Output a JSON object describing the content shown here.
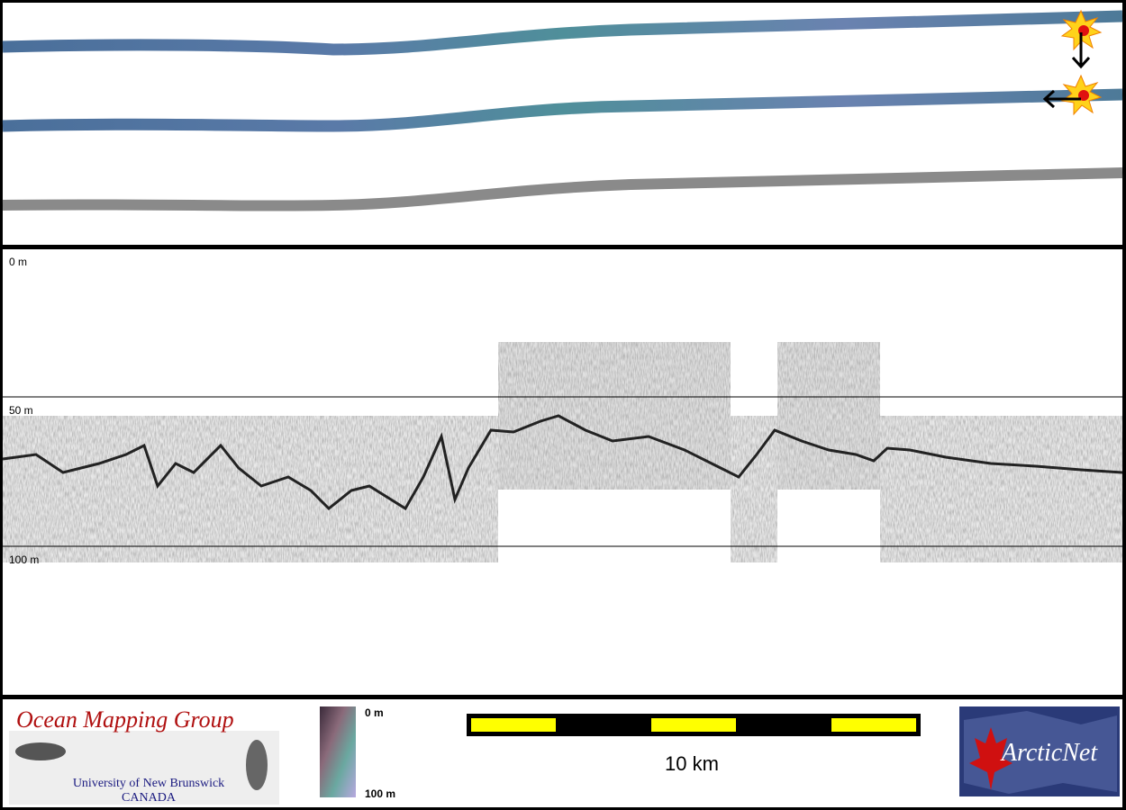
{
  "profile": {
    "depth_labels": [
      "0 m",
      "50 m",
      "100 m"
    ]
  },
  "footer": {
    "logo": {
      "title": "Ocean Mapping Group",
      "line1": "University of New Brunswick",
      "line2": "CANADA"
    },
    "color_scale": {
      "top_label": "0 m",
      "bottom_label": "100 m"
    },
    "scale_bar": {
      "label": "10 km"
    },
    "partner_logo": {
      "name": "ArcticNet"
    }
  }
}
